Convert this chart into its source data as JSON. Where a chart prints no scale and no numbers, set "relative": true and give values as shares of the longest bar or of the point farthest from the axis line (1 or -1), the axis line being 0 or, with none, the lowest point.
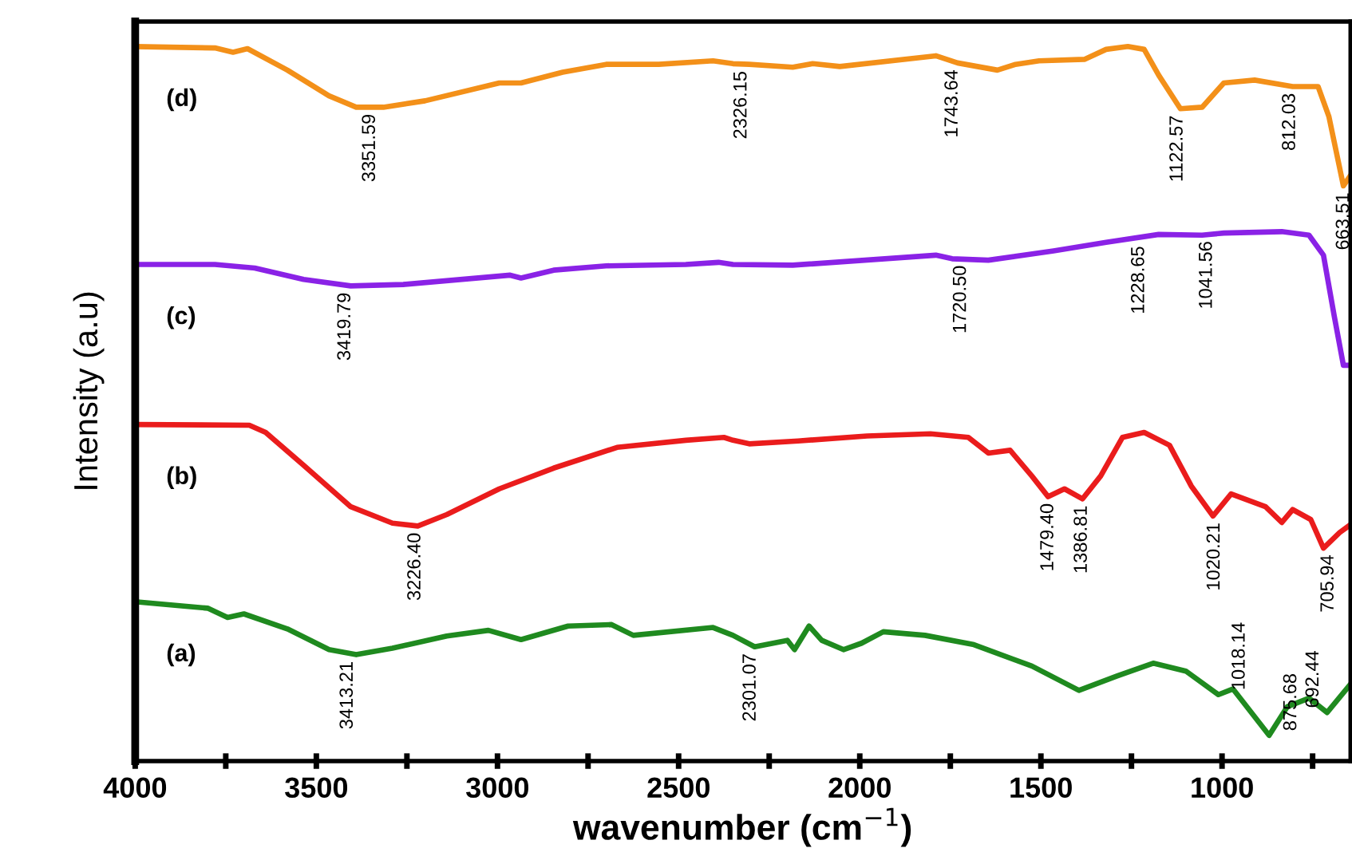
{
  "chart_data": {
    "type": "line",
    "relative": true,
    "xlabel": "wavenumber (cm$^{−1}$)",
    "ylabel": "Intensity (a.u)",
    "xlim": [
      4000,
      645
    ],
    "xticks": [
      4000,
      {
        "value": 3750,
        "label": null
      },
      3500,
      {
        "value": 3250,
        "label": null
      },
      3000,
      {
        "value": 2750,
        "label": null
      },
      2500,
      {
        "value": 2250,
        "label": null
      },
      2000,
      {
        "value": 1750,
        "label": null
      },
      1500,
      {
        "value": 1250,
        "label": null
      },
      1000,
      {
        "value": 750,
        "label": null
      }
    ],
    "grid": false,
    "legend": false,
    "line_style": "solid",
    "marker": "none",
    "series": [
      {
        "name": "(d)",
        "color": "#f39019",
        "x": [
          4000,
          3780,
          3730,
          3690,
          3580,
          3465,
          3390,
          3315,
          3200,
          2995,
          2935,
          2820,
          2700,
          2555,
          2405,
          2350,
          2305,
          2185,
          2130,
          2055,
          1790,
          1730,
          1620,
          1570,
          1505,
          1380,
          1320,
          1260,
          1215,
          1175,
          1115,
          1055,
          995,
          910,
          805,
          735,
          705,
          665,
          645
        ],
        "values": [
          1.0,
          0.998,
          0.992,
          0.997,
          0.967,
          0.931,
          0.915,
          0.915,
          0.924,
          0.949,
          0.949,
          0.964,
          0.975,
          0.975,
          0.98,
          0.976,
          0.975,
          0.971,
          0.976,
          0.972,
          0.987,
          0.977,
          0.967,
          0.975,
          0.98,
          0.982,
          0.996,
          1.0,
          0.996,
          0.96,
          0.913,
          0.915,
          0.949,
          0.953,
          0.944,
          0.944,
          0.902,
          0.805,
          0.82
        ]
      },
      {
        "name": "(c)",
        "color": "#8a22e6",
        "x": [
          4000,
          3780,
          3670,
          3535,
          3405,
          3260,
          2965,
          2935,
          2845,
          2700,
          2480,
          2390,
          2350,
          2185,
          1790,
          1745,
          1645,
          1465,
          1320,
          1175,
          1055,
          995,
          835,
          760,
          720,
          690,
          665,
          645
        ],
        "values": [
          0.695,
          0.695,
          0.69,
          0.674,
          0.665,
          0.667,
          0.68,
          0.676,
          0.687,
          0.693,
          0.695,
          0.698,
          0.695,
          0.694,
          0.708,
          0.703,
          0.701,
          0.714,
          0.726,
          0.737,
          0.736,
          0.739,
          0.741,
          0.736,
          0.708,
          0.622,
          0.554,
          0.554
        ]
      },
      {
        "name": "(b)",
        "color": "#ea1c1c",
        "x": [
          4000,
          3685,
          3640,
          3535,
          3405,
          3290,
          3220,
          3140,
          2995,
          2845,
          2670,
          2480,
          2375,
          2350,
          2305,
          2170,
          1980,
          1805,
          1700,
          1645,
          1585,
          1525,
          1480,
          1435,
          1385,
          1335,
          1275,
          1215,
          1145,
          1085,
          1025,
          975,
          880,
          835,
          805,
          755,
          720,
          675,
          645
        ],
        "values": [
          0.471,
          0.47,
          0.46,
          0.414,
          0.356,
          0.333,
          0.329,
          0.345,
          0.381,
          0.41,
          0.439,
          0.449,
          0.453,
          0.449,
          0.444,
          0.448,
          0.455,
          0.458,
          0.453,
          0.431,
          0.435,
          0.399,
          0.37,
          0.381,
          0.367,
          0.399,
          0.453,
          0.46,
          0.442,
          0.385,
          0.343,
          0.374,
          0.356,
          0.334,
          0.352,
          0.338,
          0.298,
          0.32,
          0.331
        ]
      },
      {
        "name": "(a)",
        "color": "#1f8a1f",
        "x": [
          4000,
          3800,
          3745,
          3700,
          3580,
          3465,
          3390,
          3290,
          3140,
          3025,
          2935,
          2805,
          2685,
          2625,
          2405,
          2350,
          2290,
          2200,
          2180,
          2140,
          2105,
          2045,
          1995,
          1935,
          1820,
          1685,
          1525,
          1395,
          1290,
          1190,
          1100,
          1010,
          970,
          870,
          820,
          760,
          710,
          645
        ],
        "values": [
          0.223,
          0.214,
          0.201,
          0.206,
          0.185,
          0.156,
          0.149,
          0.158,
          0.175,
          0.183,
          0.17,
          0.189,
          0.191,
          0.176,
          0.187,
          0.176,
          0.16,
          0.169,
          0.156,
          0.189,
          0.169,
          0.156,
          0.165,
          0.181,
          0.176,
          0.163,
          0.133,
          0.099,
          0.119,
          0.137,
          0.126,
          0.093,
          0.101,
          0.036,
          0.076,
          0.088,
          0.068,
          0.108
        ]
      }
    ],
    "annotations": [
      {
        "text": "3351.59",
        "x": 3351.59,
        "y": 0.915
      },
      {
        "text": "2326.15",
        "x": 2326.15,
        "y": 0.975
      },
      {
        "text": "1743.64",
        "x": 1743.64,
        "y": 0.977
      },
      {
        "text": "1122.57",
        "x": 1122.57,
        "y": 0.913
      },
      {
        "text": "812.03",
        "x": 812.03,
        "y": 0.944
      },
      {
        "text": "663.51",
        "x": 663.51,
        "y": 0.805
      },
      {
        "text": "3419.79",
        "x": 3419.79,
        "y": 0.665
      },
      {
        "text": "1720.50",
        "x": 1720.5,
        "y": 0.703
      },
      {
        "text": "1228.65",
        "x": 1228.65,
        "y": 0.73
      },
      {
        "text": "1041.56",
        "x": 1041.56,
        "y": 0.737
      },
      {
        "text": "3226.40",
        "x": 3226.4,
        "y": 0.329
      },
      {
        "text": "1479.40",
        "x": 1479.4,
        "y": 0.37
      },
      {
        "text": "1386.81",
        "x": 1386.81,
        "y": 0.367
      },
      {
        "text": "1020.21",
        "x": 1020.21,
        "y": 0.343
      },
      {
        "text": "705.94",
        "x": 705.94,
        "y": 0.298
      },
      {
        "text": "3413.21",
        "x": 3413.21,
        "y": 0.149
      },
      {
        "text": "2301.07",
        "x": 2301.07,
        "y": 0.16
      },
      {
        "text": "1018.14",
        "x": 1018.14,
        "y": 0.093
      },
      {
        "text": "875.68",
        "x": 875.68,
        "y": 0.036
      },
      {
        "text": "692.44",
        "x": 692.44,
        "y": 0.068
      }
    ]
  }
}
